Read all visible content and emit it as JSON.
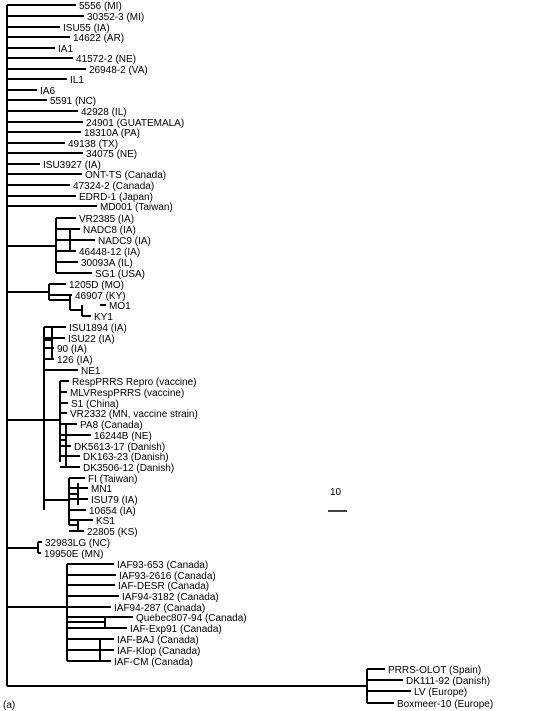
{
  "figure_label": "(a)",
  "scale_bar": {
    "label": "10"
  },
  "taxa": [
    "5556 (MI)",
    "30352-3 (MI)",
    "ISU55 (IA)",
    "14622 (AR)",
    "IA1",
    "41572-2 (NE)",
    "26948-2 (VA)",
    "IL1",
    "IA6",
    "5591 (NC)",
    "42928 (IL)",
    "24901 (GUATEMALA)",
    "18310A (PA)",
    "49138 (TX)",
    "34075 (NE)",
    "ISU3927 (IA)",
    "ONT-TS (Canada)",
    "47324-2 (Canada)",
    "EDRD-1 (Japan)",
    "MD001 (Taiwan)",
    "VR2385 (IA)",
    "NADC8 (IA)",
    "NADC9 (IA)",
    "46448-12 (IA)",
    "30093A (IL)",
    "SG1 (USA)",
    "1205D (MO)",
    "46907 (KY)",
    "MO1",
    "KY1",
    "ISU1894 (IA)",
    "ISU22 (IA)",
    "90 (IA)",
    "126 (IA)",
    "NE1",
    "RespPRRS Repro (vaccine)",
    "MLVRespPRRS (vaccine)",
    "S1 (China)",
    "VR2332 (MN, vaccine strain)",
    "PA8 (Canada)",
    "16244B (NE)",
    "DK5613-17 (Danish)",
    "DK163-23 (Danish)",
    "DK3506-12 (Danish)",
    "FI (Taiwan)",
    "MN1",
    "ISU79 (IA)",
    "10654 (IA)",
    "KS1",
    "22805 (KS)",
    "32983LG (NC)",
    "19950E (MN)",
    "IAF93-653 (Canada)",
    "IAF93-2616 (Canada)",
    "IAF-DESR (Canada)",
    "IAF94-3182 (Canada)",
    "IAF94-287 (Canada)",
    "Quebec807-94 (Canada)",
    "IAF-Exp91 (Canada)",
    "IAF-BAJ (Canada)",
    "IAF-Klop (Canada)",
    "IAF-CM (Canada)",
    "PRRS-OLOT (Spain)",
    "DK111-92 (Danish)",
    "LV (Europe)",
    "Boxmeer-10 (Europe)"
  ]
}
